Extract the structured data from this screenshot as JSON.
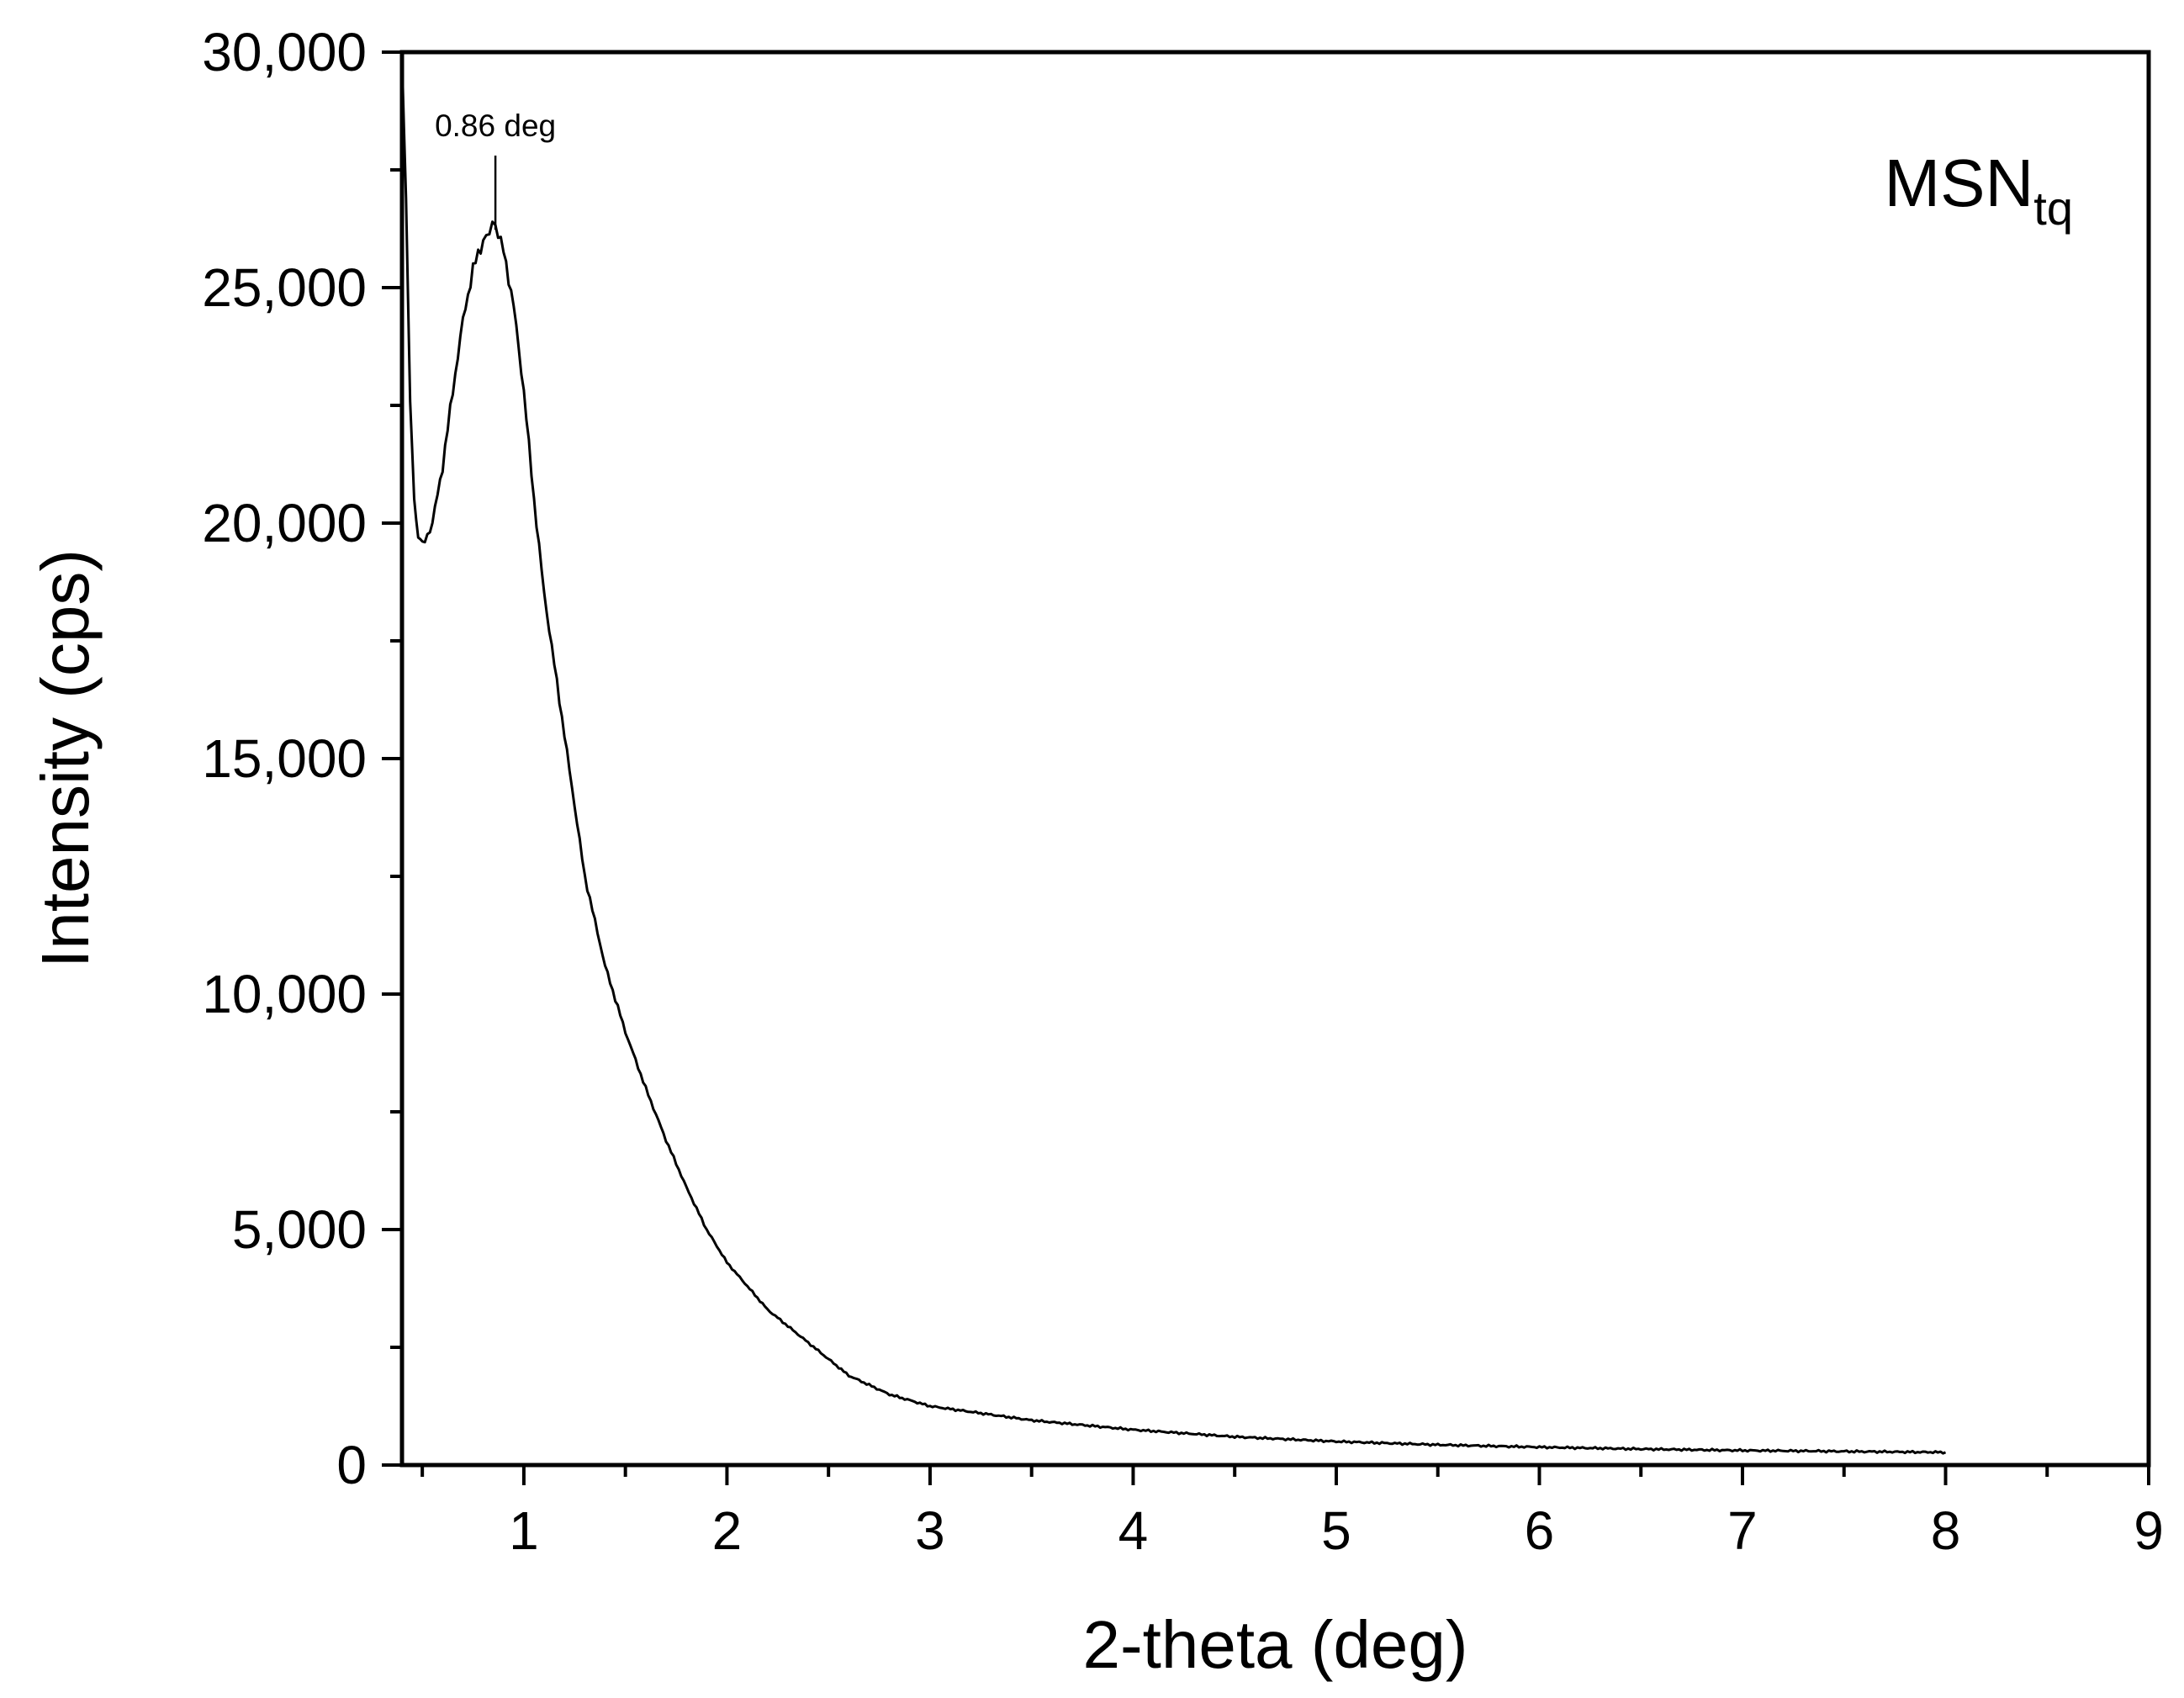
{
  "chart_data": {
    "type": "line",
    "title": "",
    "xlabel": "2-theta (deg)",
    "ylabel": "Intensity (cps)",
    "xlim": [
      0.4,
      9
    ],
    "ylim": [
      0,
      30000
    ],
    "x_ticks": [
      1,
      2,
      3,
      4,
      5,
      6,
      7,
      8,
      9
    ],
    "x_tick_labels": [
      "1",
      "2",
      "3",
      "4",
      "5",
      "6",
      "7",
      "8",
      "9"
    ],
    "y_ticks": [
      0,
      5000,
      10000,
      15000,
      20000,
      25000,
      30000
    ],
    "y_tick_labels": [
      "0",
      "5,000",
      "10,000",
      "15,000",
      "20,000",
      "25,000",
      "30,000"
    ],
    "grid": false,
    "sample_label": {
      "main": "MSN",
      "subscript": "tq"
    },
    "annotations": [
      {
        "text": "0.86 deg",
        "x": 0.86,
        "y": 26300
      }
    ],
    "series": [
      {
        "x": [
          0.4,
          0.42,
          0.44,
          0.46,
          0.48,
          0.5,
          0.55,
          0.6,
          0.65,
          0.7,
          0.75,
          0.8,
          0.83,
          0.86,
          0.9,
          0.95,
          1.0,
          1.05,
          1.1,
          1.2,
          1.3,
          1.4,
          1.5,
          1.6,
          1.7,
          1.8,
          1.9,
          2.0,
          2.2,
          2.4,
          2.6,
          2.8,
          3.0,
          3.5,
          4.0,
          4.5,
          5.0,
          5.5,
          6.0,
          6.5,
          7.0,
          7.5,
          8.0
        ],
        "y": [
          30000,
          27000,
          22500,
          20500,
          19700,
          19500,
          20000,
          21200,
          22800,
          24300,
          25400,
          26000,
          26250,
          26300,
          25800,
          24600,
          22800,
          20500,
          18500,
          15500,
          12500,
          10600,
          9200,
          8000,
          6900,
          5900,
          5000,
          4300,
          3300,
          2600,
          1900,
          1500,
          1250,
          950,
          750,
          600,
          500,
          430,
          380,
          340,
          310,
          290,
          270
        ]
      }
    ]
  }
}
